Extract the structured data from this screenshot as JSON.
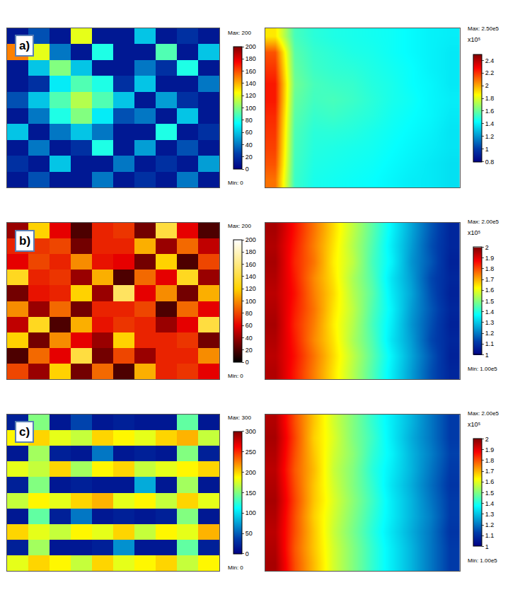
{
  "chart_data": [
    {
      "type": "heatmap",
      "panel": "a)",
      "color": "Jet",
      "tick_labels": false,
      "max_label": "Max: 200",
      "min_label": "Min: 0",
      "zlim": [
        0,
        200
      ],
      "zticks": [
        0,
        20,
        40,
        60,
        80,
        100,
        120,
        140,
        160,
        180,
        200
      ],
      "z": [
        [
          10,
          30,
          10,
          120,
          10,
          10,
          60,
          10,
          20,
          10
        ],
        [
          150,
          120,
          40,
          10,
          80,
          10,
          10,
          90,
          10,
          60
        ],
        [
          10,
          60,
          100,
          60,
          10,
          10,
          40,
          20,
          80,
          10
        ],
        [
          10,
          20,
          70,
          90,
          80,
          20,
          60,
          10,
          10,
          40
        ],
        [
          30,
          60,
          90,
          110,
          90,
          60,
          10,
          50,
          20,
          10
        ],
        [
          10,
          40,
          80,
          100,
          70,
          30,
          40,
          10,
          60,
          10
        ],
        [
          60,
          10,
          40,
          60,
          40,
          10,
          10,
          80,
          10,
          20
        ],
        [
          10,
          40,
          10,
          20,
          80,
          10,
          50,
          10,
          30,
          10
        ],
        [
          20,
          10,
          60,
          10,
          10,
          40,
          10,
          20,
          10,
          50
        ],
        [
          10,
          30,
          10,
          10,
          40,
          10,
          20,
          10,
          40,
          10
        ]
      ]
    },
    {
      "type": "heatmap",
      "color": "Jet",
      "tick_labels": false,
      "max_label": "Max: 2.50e5",
      "colorbar_title": "x10⁵",
      "zlim": [
        80000,
        250000
      ],
      "zticks": [
        {
          "value": 80000,
          "label": "0.8"
        },
        {
          "value": 100000,
          "label": "1"
        },
        {
          "value": 120000,
          "label": "1.2"
        },
        {
          "value": 140000,
          "label": "1.4"
        },
        {
          "value": 160000,
          "label": "1.6"
        },
        {
          "value": 180000,
          "label": "1.8"
        },
        {
          "value": 200000,
          "label": "2"
        },
        {
          "value": 220000,
          "label": "2.2"
        },
        {
          "value": 240000,
          "label": "2.4"
        }
      ],
      "z": [
        [
          190000,
          155000,
          150000,
          148000,
          147000,
          146000,
          145000,
          143000,
          141000,
          140000
        ],
        [
          215000,
          158000,
          152000,
          150000,
          148000,
          147000,
          145000,
          143000,
          141000,
          139000
        ],
        [
          220000,
          160000,
          153000,
          151000,
          150000,
          148000,
          146000,
          144000,
          141000,
          139000
        ],
        [
          225000,
          162000,
          155000,
          153000,
          152000,
          149000,
          147000,
          144000,
          142000,
          139000
        ],
        [
          225000,
          160000,
          154000,
          155000,
          153000,
          150000,
          147000,
          145000,
          142000,
          140000
        ],
        [
          222000,
          158000,
          152000,
          153000,
          151000,
          149000,
          146000,
          144000,
          142000,
          139000
        ],
        [
          220000,
          156000,
          150000,
          150000,
          149000,
          147000,
          145000,
          143000,
          141000,
          138000
        ],
        [
          218000,
          155000,
          149000,
          148000,
          147000,
          146000,
          144000,
          142000,
          140000,
          138000
        ],
        [
          215000,
          154000,
          148000,
          147000,
          146000,
          145000,
          143000,
          141000,
          139000,
          137000
        ],
        [
          210000,
          153000,
          147000,
          146000,
          145000,
          144000,
          142000,
          140000,
          139000,
          137000
        ]
      ]
    },
    {
      "type": "heatmap",
      "panel": "b)",
      "color": "Hot",
      "tick_labels": false,
      "max_label": "Max: 200",
      "min_label": "Min: 0",
      "zlim": [
        0,
        200
      ],
      "zticks": [
        0,
        20,
        40,
        60,
        80,
        100,
        120,
        140,
        160,
        180,
        200
      ],
      "z": [
        [
          40,
          120,
          60,
          20,
          70,
          75,
          30,
          140,
          60,
          20
        ],
        [
          70,
          75,
          80,
          30,
          70,
          70,
          110,
          40,
          90,
          50
        ],
        [
          60,
          80,
          70,
          100,
          65,
          60,
          30,
          120,
          20,
          80
        ],
        [
          130,
          70,
          75,
          40,
          110,
          20,
          90,
          60,
          130,
          40
        ],
        [
          30,
          65,
          70,
          120,
          40,
          150,
          60,
          100,
          30,
          110
        ],
        [
          100,
          40,
          90,
          30,
          70,
          70,
          80,
          20,
          90,
          60
        ],
        [
          50,
          130,
          20,
          110,
          65,
          75,
          70,
          40,
          60,
          140
        ],
        [
          120,
          30,
          100,
          60,
          40,
          120,
          70,
          70,
          75,
          30
        ],
        [
          20,
          90,
          60,
          140,
          30,
          80,
          40,
          70,
          70,
          100
        ],
        [
          80,
          40,
          120,
          30,
          90,
          20,
          110,
          70,
          75,
          60
        ]
      ]
    },
    {
      "type": "heatmap",
      "color": "Jet",
      "tick_labels": false,
      "max_label": "Max: 2.00e5",
      "min_label": "Min: 1.00e5",
      "colorbar_title": "x10⁵",
      "zlim": [
        100000,
        200000
      ],
      "zticks": [
        {
          "value": 100000,
          "label": "1"
        },
        {
          "value": 110000,
          "label": "1.1"
        },
        {
          "value": 120000,
          "label": "1.2"
        },
        {
          "value": 130000,
          "label": "1.3"
        },
        {
          "value": 140000,
          "label": "1.4"
        },
        {
          "value": 150000,
          "label": "1.5"
        },
        {
          "value": 160000,
          "label": "1.6"
        },
        {
          "value": 170000,
          "label": "1.7"
        },
        {
          "value": 180000,
          "label": "1.8"
        },
        {
          "value": 190000,
          "label": "1.9"
        },
        {
          "value": 200000,
          "label": "2"
        }
      ],
      "z": [
        [
          196000,
          186000,
          176000,
          166000,
          156000,
          146000,
          136000,
          126000,
          116000,
          108000
        ],
        [
          195000,
          185000,
          175000,
          165000,
          155000,
          145000,
          135000,
          125000,
          115000,
          108000
        ],
        [
          196000,
          184000,
          176000,
          164000,
          156000,
          144000,
          136000,
          124000,
          116000,
          107000
        ],
        [
          195000,
          185000,
          174000,
          165000,
          154000,
          145000,
          134000,
          125000,
          114000,
          108000
        ],
        [
          194000,
          186000,
          175000,
          166000,
          155000,
          146000,
          135000,
          126000,
          115000,
          107000
        ],
        [
          195000,
          185000,
          176000,
          165000,
          156000,
          145000,
          136000,
          125000,
          116000,
          108000
        ],
        [
          196000,
          184000,
          175000,
          164000,
          155000,
          144000,
          135000,
          124000,
          115000,
          107000
        ],
        [
          195000,
          185000,
          174000,
          165000,
          154000,
          145000,
          134000,
          125000,
          114000,
          108000
        ],
        [
          194000,
          186000,
          176000,
          166000,
          156000,
          146000,
          136000,
          126000,
          116000,
          107000
        ],
        [
          195000,
          185000,
          175000,
          165000,
          155000,
          145000,
          135000,
          125000,
          115000,
          108000
        ]
      ]
    },
    {
      "type": "heatmap",
      "panel": "c)",
      "color": "Jet",
      "tick_labels": false,
      "max_label": "Max: 300",
      "min_label": "Min: 0",
      "zlim": [
        0,
        300
      ],
      "zticks": [
        0,
        50,
        100,
        150,
        200,
        250,
        300
      ],
      "z": [
        [
          20,
          150,
          15,
          40,
          15,
          20,
          15,
          15,
          140,
          15
        ],
        [
          190,
          200,
          180,
          170,
          200,
          190,
          180,
          200,
          210,
          170
        ],
        [
          15,
          160,
          20,
          15,
          60,
          15,
          20,
          15,
          150,
          20
        ],
        [
          180,
          170,
          200,
          160,
          190,
          200,
          170,
          180,
          190,
          200
        ],
        [
          20,
          150,
          15,
          20,
          15,
          15,
          80,
          15,
          160,
          15
        ],
        [
          170,
          190,
          180,
          200,
          210,
          180,
          190,
          170,
          200,
          180
        ],
        [
          15,
          140,
          20,
          60,
          15,
          20,
          15,
          20,
          150,
          15
        ],
        [
          200,
          180,
          170,
          190,
          180,
          200,
          170,
          190,
          180,
          210
        ],
        [
          20,
          160,
          15,
          15,
          20,
          70,
          15,
          15,
          140,
          20
        ],
        [
          180,
          200,
          190,
          170,
          200,
          180,
          190,
          200,
          170,
          190
        ]
      ]
    },
    {
      "type": "heatmap",
      "color": "Jet",
      "tick_labels": false,
      "max_label": "Max: 2.00e5",
      "min_label": "Min: 1.00e5",
      "colorbar_title": "x10⁵",
      "zlim": [
        100000,
        200000
      ],
      "zticks": [
        {
          "value": 100000,
          "label": "1"
        },
        {
          "value": 110000,
          "label": "1.1"
        },
        {
          "value": 120000,
          "label": "1.2"
        },
        {
          "value": 130000,
          "label": "1.3"
        },
        {
          "value": 140000,
          "label": "1.4"
        },
        {
          "value": 150000,
          "label": "1.5"
        },
        {
          "value": 160000,
          "label": "1.6"
        },
        {
          "value": 170000,
          "label": "1.7"
        },
        {
          "value": 180000,
          "label": "1.8"
        },
        {
          "value": 190000,
          "label": "1.9"
        },
        {
          "value": 200000,
          "label": "2"
        }
      ],
      "z": [
        [
          195000,
          180000,
          168000,
          158000,
          150000,
          142000,
          135000,
          128000,
          120000,
          112000
        ],
        [
          196000,
          181000,
          167000,
          159000,
          150000,
          143000,
          135000,
          127000,
          120000,
          112000
        ],
        [
          195000,
          180000,
          168000,
          158000,
          151000,
          142000,
          136000,
          128000,
          121000,
          113000
        ],
        [
          194000,
          179000,
          169000,
          157000,
          150000,
          141000,
          135000,
          128000,
          120000,
          112000
        ],
        [
          195000,
          180000,
          168000,
          158000,
          150000,
          142000,
          134000,
          127000,
          119000,
          111000
        ],
        [
          196000,
          181000,
          168000,
          159000,
          151000,
          143000,
          135000,
          128000,
          120000,
          112000
        ],
        [
          195000,
          180000,
          167000,
          158000,
          150000,
          142000,
          135000,
          128000,
          121000,
          112000
        ],
        [
          194000,
          180000,
          168000,
          157000,
          149000,
          141000,
          134000,
          127000,
          120000,
          111000
        ],
        [
          195000,
          179000,
          168000,
          158000,
          150000,
          142000,
          135000,
          128000,
          120000,
          112000
        ],
        [
          196000,
          180000,
          169000,
          158000,
          150000,
          142000,
          135000,
          128000,
          120000,
          112000
        ]
      ]
    }
  ]
}
